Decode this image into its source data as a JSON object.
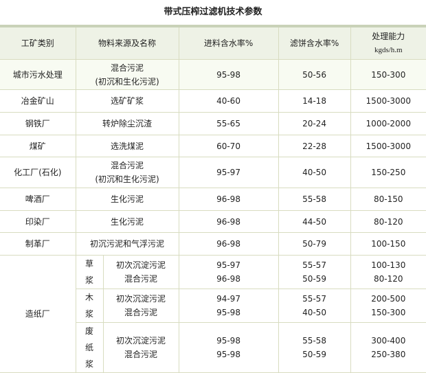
{
  "title": "带式压榨过滤机技术参数",
  "headers": [
    "工矿类别",
    "物料来源及名称",
    "进料含水率%",
    "滤饼含水率%",
    "处理能力",
    "kgds/h.m"
  ],
  "rows": [
    {
      "category": "城市污水处理",
      "material": [
        "混合污泥",
        "(初沉和生化污泥)"
      ],
      "feed": "95-98",
      "cake": "50-56",
      "capacity": "150-300"
    },
    {
      "category": "冶金矿山",
      "material": [
        "选矿矿浆"
      ],
      "feed": "40-60",
      "cake": "14-18",
      "capacity": "1500-3000"
    },
    {
      "category": "钢铁厂",
      "material": [
        "转炉除尘沉渣"
      ],
      "feed": "55-65",
      "cake": "20-24",
      "capacity": "1000-2000"
    },
    {
      "category": "煤矿",
      "material": [
        "选洗煤泥"
      ],
      "feed": "60-70",
      "cake": "22-28",
      "capacity": "1500-3000"
    },
    {
      "category": "化工厂(石化)",
      "material": [
        "混合污泥",
        "(初沉和生化污泥)"
      ],
      "feed": "95-97",
      "cake": "40-50",
      "capacity": "150-250"
    },
    {
      "category": "啤酒厂",
      "material": [
        "生化污泥"
      ],
      "feed": "96-98",
      "cake": "55-58",
      "capacity": "80-150"
    },
    {
      "category": "印染厂",
      "material": [
        "生化污泥"
      ],
      "feed": "96-98",
      "cake": "44-50",
      "capacity": "80-120"
    },
    {
      "category": "制革厂",
      "material": [
        "初沉污泥和气浮污泥"
      ],
      "feed": "96-98",
      "cake": "50-79",
      "capacity": "100-150"
    }
  ],
  "paper": {
    "category": "造纸厂",
    "subs": [
      {
        "pulp": [
          "草",
          "浆"
        ],
        "materials": [
          "初次沉淀污泥",
          "混合污泥"
        ],
        "feed": [
          "95-97",
          "96-98"
        ],
        "cake": [
          "55-57",
          "50-59"
        ],
        "capacity": [
          "100-130",
          "80-120"
        ]
      },
      {
        "pulp": [
          "木",
          "浆"
        ],
        "materials": [
          "初次沉淀污泥",
          "混合污泥"
        ],
        "feed": [
          "94-97",
          "95-98"
        ],
        "cake": [
          "55-57",
          "40-50"
        ],
        "capacity": [
          "200-500",
          "150-300"
        ]
      },
      {
        "pulp": [
          "废",
          "纸",
          "浆"
        ],
        "materials": [
          "初次沉淀污泥",
          "混合污泥"
        ],
        "feed": [
          "95-98",
          "95-98"
        ],
        "cake": [
          "55-58",
          "50-59"
        ],
        "capacity": [
          "300-400",
          "250-380"
        ]
      }
    ]
  }
}
